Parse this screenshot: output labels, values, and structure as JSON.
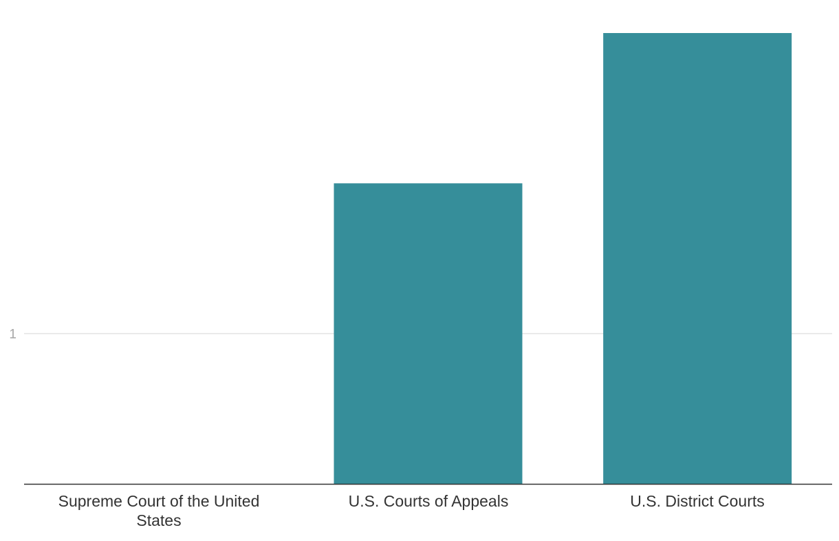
{
  "chart_data": {
    "type": "bar",
    "categories": [
      "Supreme Court of the United States",
      "U.S. Courts of Appeals",
      "U.S. District Courts"
    ],
    "values": [
      0,
      2,
      3
    ],
    "ylim": [
      0,
      3
    ],
    "yticks": [
      1
    ],
    "ytick_labels": [
      "1"
    ],
    "grid": true,
    "colors": {
      "bar": "#368e9a",
      "gridline": "#e3e3e3",
      "baseline": "#333333"
    }
  }
}
